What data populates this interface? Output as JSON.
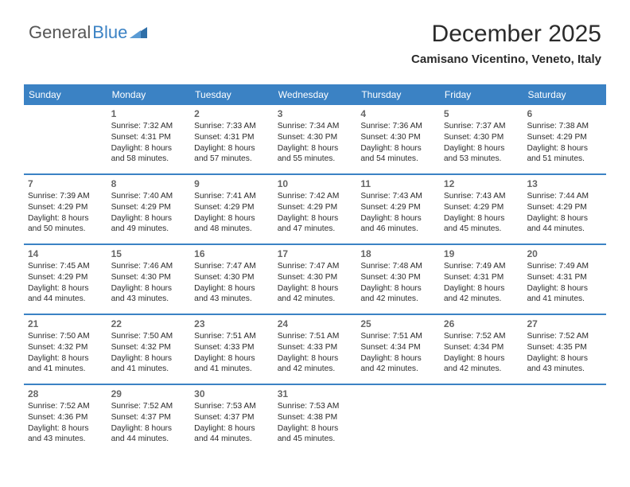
{
  "brand": {
    "part1": "General",
    "part2": "Blue",
    "color1": "#555555",
    "color2": "#3b82c4",
    "triangle_color": "#2f6fa8"
  },
  "header": {
    "month_title": "December 2025",
    "location": "Camisano Vicentino, Veneto, Italy"
  },
  "style": {
    "header_bg": "#3b82c4",
    "week_border": "#3b82c4",
    "daynum_color": "#666666",
    "text_color": "#2b2b2b",
    "weekday_text": "#ffffff",
    "title_fontsize": 30,
    "location_fontsize": 15,
    "weekday_fontsize": 12,
    "daynum_fontsize": 12,
    "body_fontsize": 10.2
  },
  "weekdays": [
    "Sunday",
    "Monday",
    "Tuesday",
    "Wednesday",
    "Thursday",
    "Friday",
    "Saturday"
  ],
  "weeks": [
    [
      null,
      {
        "n": "1",
        "sr": "7:32 AM",
        "ss": "4:31 PM",
        "dl1": "Daylight: 8 hours",
        "dl2": "and 58 minutes."
      },
      {
        "n": "2",
        "sr": "7:33 AM",
        "ss": "4:31 PM",
        "dl1": "Daylight: 8 hours",
        "dl2": "and 57 minutes."
      },
      {
        "n": "3",
        "sr": "7:34 AM",
        "ss": "4:30 PM",
        "dl1": "Daylight: 8 hours",
        "dl2": "and 55 minutes."
      },
      {
        "n": "4",
        "sr": "7:36 AM",
        "ss": "4:30 PM",
        "dl1": "Daylight: 8 hours",
        "dl2": "and 54 minutes."
      },
      {
        "n": "5",
        "sr": "7:37 AM",
        "ss": "4:30 PM",
        "dl1": "Daylight: 8 hours",
        "dl2": "and 53 minutes."
      },
      {
        "n": "6",
        "sr": "7:38 AM",
        "ss": "4:29 PM",
        "dl1": "Daylight: 8 hours",
        "dl2": "and 51 minutes."
      }
    ],
    [
      {
        "n": "7",
        "sr": "7:39 AM",
        "ss": "4:29 PM",
        "dl1": "Daylight: 8 hours",
        "dl2": "and 50 minutes."
      },
      {
        "n": "8",
        "sr": "7:40 AM",
        "ss": "4:29 PM",
        "dl1": "Daylight: 8 hours",
        "dl2": "and 49 minutes."
      },
      {
        "n": "9",
        "sr": "7:41 AM",
        "ss": "4:29 PM",
        "dl1": "Daylight: 8 hours",
        "dl2": "and 48 minutes."
      },
      {
        "n": "10",
        "sr": "7:42 AM",
        "ss": "4:29 PM",
        "dl1": "Daylight: 8 hours",
        "dl2": "and 47 minutes."
      },
      {
        "n": "11",
        "sr": "7:43 AM",
        "ss": "4:29 PM",
        "dl1": "Daylight: 8 hours",
        "dl2": "and 46 minutes."
      },
      {
        "n": "12",
        "sr": "7:43 AM",
        "ss": "4:29 PM",
        "dl1": "Daylight: 8 hours",
        "dl2": "and 45 minutes."
      },
      {
        "n": "13",
        "sr": "7:44 AM",
        "ss": "4:29 PM",
        "dl1": "Daylight: 8 hours",
        "dl2": "and 44 minutes."
      }
    ],
    [
      {
        "n": "14",
        "sr": "7:45 AM",
        "ss": "4:29 PM",
        "dl1": "Daylight: 8 hours",
        "dl2": "and 44 minutes."
      },
      {
        "n": "15",
        "sr": "7:46 AM",
        "ss": "4:30 PM",
        "dl1": "Daylight: 8 hours",
        "dl2": "and 43 minutes."
      },
      {
        "n": "16",
        "sr": "7:47 AM",
        "ss": "4:30 PM",
        "dl1": "Daylight: 8 hours",
        "dl2": "and 43 minutes."
      },
      {
        "n": "17",
        "sr": "7:47 AM",
        "ss": "4:30 PM",
        "dl1": "Daylight: 8 hours",
        "dl2": "and 42 minutes."
      },
      {
        "n": "18",
        "sr": "7:48 AM",
        "ss": "4:30 PM",
        "dl1": "Daylight: 8 hours",
        "dl2": "and 42 minutes."
      },
      {
        "n": "19",
        "sr": "7:49 AM",
        "ss": "4:31 PM",
        "dl1": "Daylight: 8 hours",
        "dl2": "and 42 minutes."
      },
      {
        "n": "20",
        "sr": "7:49 AM",
        "ss": "4:31 PM",
        "dl1": "Daylight: 8 hours",
        "dl2": "and 41 minutes."
      }
    ],
    [
      {
        "n": "21",
        "sr": "7:50 AM",
        "ss": "4:32 PM",
        "dl1": "Daylight: 8 hours",
        "dl2": "and 41 minutes."
      },
      {
        "n": "22",
        "sr": "7:50 AM",
        "ss": "4:32 PM",
        "dl1": "Daylight: 8 hours",
        "dl2": "and 41 minutes."
      },
      {
        "n": "23",
        "sr": "7:51 AM",
        "ss": "4:33 PM",
        "dl1": "Daylight: 8 hours",
        "dl2": "and 41 minutes."
      },
      {
        "n": "24",
        "sr": "7:51 AM",
        "ss": "4:33 PM",
        "dl1": "Daylight: 8 hours",
        "dl2": "and 42 minutes."
      },
      {
        "n": "25",
        "sr": "7:51 AM",
        "ss": "4:34 PM",
        "dl1": "Daylight: 8 hours",
        "dl2": "and 42 minutes."
      },
      {
        "n": "26",
        "sr": "7:52 AM",
        "ss": "4:34 PM",
        "dl1": "Daylight: 8 hours",
        "dl2": "and 42 minutes."
      },
      {
        "n": "27",
        "sr": "7:52 AM",
        "ss": "4:35 PM",
        "dl1": "Daylight: 8 hours",
        "dl2": "and 43 minutes."
      }
    ],
    [
      {
        "n": "28",
        "sr": "7:52 AM",
        "ss": "4:36 PM",
        "dl1": "Daylight: 8 hours",
        "dl2": "and 43 minutes."
      },
      {
        "n": "29",
        "sr": "7:52 AM",
        "ss": "4:37 PM",
        "dl1": "Daylight: 8 hours",
        "dl2": "and 44 minutes."
      },
      {
        "n": "30",
        "sr": "7:53 AM",
        "ss": "4:37 PM",
        "dl1": "Daylight: 8 hours",
        "dl2": "and 44 minutes."
      },
      {
        "n": "31",
        "sr": "7:53 AM",
        "ss": "4:38 PM",
        "dl1": "Daylight: 8 hours",
        "dl2": "and 45 minutes."
      },
      null,
      null,
      null
    ]
  ]
}
